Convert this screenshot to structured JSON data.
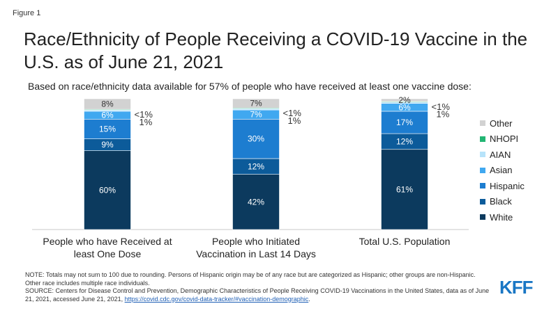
{
  "figure_label": "Figure 1",
  "title": "Race/Ethnicity of People Receiving a COVID-19 Vaccine in the U.S. as of June 21, 2021",
  "subtitle": "Based on race/ethnicity data available for 57% of people who have received at least one vaccine dose:",
  "logo": "KFF",
  "note": "NOTE: Totals may not sum to 100 due to rounding. Persons of Hispanic origin may be of any race but are categorized as Hispanic; other groups are non-Hispanic. Other race includes multiple race individuals.",
  "source_prefix": "SOURCE: Centers for Disease Control and Prevention, Demographic Characteristics of People Receiving COVID-19 Vaccinations in the United States, data as of June 21, 2021, accessed June 21, 2021, ",
  "source_link": "https://covid.cdc.gov/covid-data-tracker/#vaccination-demographic",
  "source_suffix": ".",
  "chart_data": {
    "type": "bar",
    "stacked": true,
    "normalized_percent": true,
    "categories": [
      "People who have Received at least One Dose",
      "People who Initiated Vaccination in Last 14 Days",
      "Total U.S. Population"
    ],
    "category_lines": [
      [
        "People who have Received at",
        "least One Dose"
      ],
      [
        "People who Initiated",
        "Vaccination in Last 14 Days"
      ],
      [
        "Total U.S. Population"
      ]
    ],
    "series": [
      {
        "name": "White",
        "color": "#0c3a5e",
        "values": [
          60,
          42,
          61
        ],
        "labels": [
          "60%",
          "42%",
          "61%"
        ]
      },
      {
        "name": "Black",
        "color": "#0c5b9a",
        "values": [
          9,
          12,
          12
        ],
        "labels": [
          "9%",
          "12%",
          "12%"
        ]
      },
      {
        "name": "Hispanic",
        "color": "#1d7dd0",
        "values": [
          15,
          30,
          17
        ],
        "labels": [
          "15%",
          "30%",
          "17%"
        ]
      },
      {
        "name": "Asian",
        "color": "#40a8f0",
        "values": [
          6,
          7,
          6
        ],
        "labels": [
          "6%",
          "7%",
          "6%"
        ]
      },
      {
        "name": "AIAN",
        "color": "#b7e3fa",
        "values": [
          1,
          1,
          1
        ],
        "labels": [
          "1%",
          "1%",
          "1%"
        ]
      },
      {
        "name": "NHOPI",
        "color": "#22b573",
        "values": [
          0.5,
          0.5,
          0.5
        ],
        "labels": [
          "<1%",
          "<1%",
          "<1%"
        ]
      },
      {
        "name": "Other",
        "color": "#d2d2d2",
        "values": [
          8,
          7,
          2
        ],
        "labels": [
          "8%",
          "7%",
          "2%"
        ]
      }
    ],
    "legend_position": "right",
    "grid": false
  }
}
